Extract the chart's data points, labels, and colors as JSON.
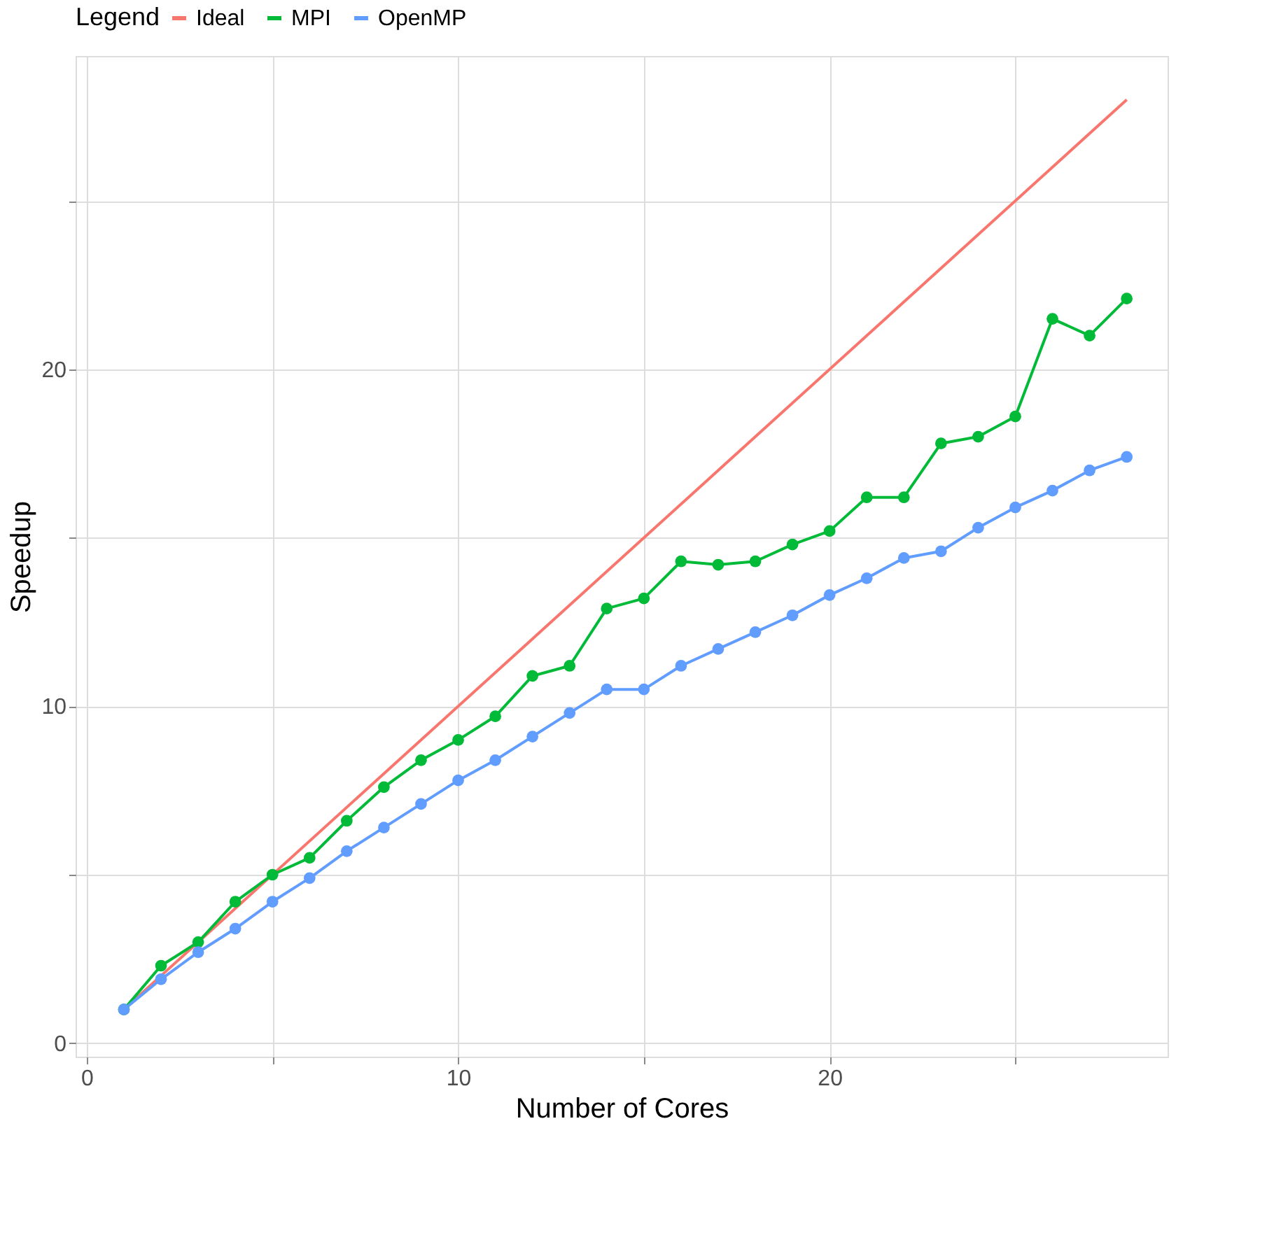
{
  "chart_data": {
    "type": "line",
    "xlabel": "Number of Cores",
    "ylabel": "Speedup",
    "legend_title": "Legend",
    "legend": "top",
    "grid": true,
    "marker": "circle",
    "line_style": "solid",
    "xlim": [
      -0.3,
      29.1
    ],
    "ylim": [
      -0.4,
      29.3
    ],
    "xticks": [
      0,
      {
        "value": 5,
        "label": null
      },
      10,
      {
        "value": 15,
        "label": null
      },
      20,
      {
        "value": 25,
        "label": null
      }
    ],
    "yticks": [
      0,
      {
        "value": 5,
        "label": null
      },
      10,
      {
        "value": 15,
        "label": null
      },
      20,
      {
        "value": 25,
        "label": null
      }
    ],
    "series": [
      {
        "name": "Ideal",
        "color": "#f8766d",
        "marker": "none",
        "x": [
          1,
          28
        ],
        "values": [
          1,
          28
        ]
      },
      {
        "name": "MPI",
        "color": "#00ba38",
        "x": [
          1,
          2,
          3,
          4,
          5,
          6,
          7,
          8,
          9,
          10,
          11,
          12,
          13,
          14,
          15,
          16,
          17,
          18,
          19,
          20,
          21,
          22,
          23,
          24,
          25,
          26,
          27,
          28
        ],
        "values": [
          1.0,
          2.3,
          3.0,
          4.2,
          5.0,
          5.5,
          6.6,
          7.6,
          8.4,
          9.0,
          9.7,
          10.9,
          11.2,
          12.9,
          13.2,
          14.3,
          14.2,
          14.3,
          14.8,
          15.2,
          16.2,
          16.2,
          17.8,
          18.0,
          18.6,
          21.5,
          21.0,
          22.1
        ]
      },
      {
        "name": "OpenMP",
        "color": "#619cff",
        "x": [
          1,
          2,
          3,
          4,
          5,
          6,
          7,
          8,
          9,
          10,
          11,
          12,
          13,
          14,
          15,
          16,
          17,
          18,
          19,
          20,
          21,
          22,
          23,
          24,
          25,
          26,
          27,
          28
        ],
        "values": [
          1.0,
          1.9,
          2.7,
          3.4,
          4.2,
          4.9,
          5.7,
          6.4,
          7.1,
          7.8,
          8.4,
          9.1,
          9.8,
          10.5,
          10.5,
          11.2,
          11.7,
          12.2,
          12.7,
          13.3,
          13.8,
          14.4,
          14.6,
          15.3,
          15.9,
          16.4,
          17.0,
          17.4
        ]
      }
    ]
  }
}
